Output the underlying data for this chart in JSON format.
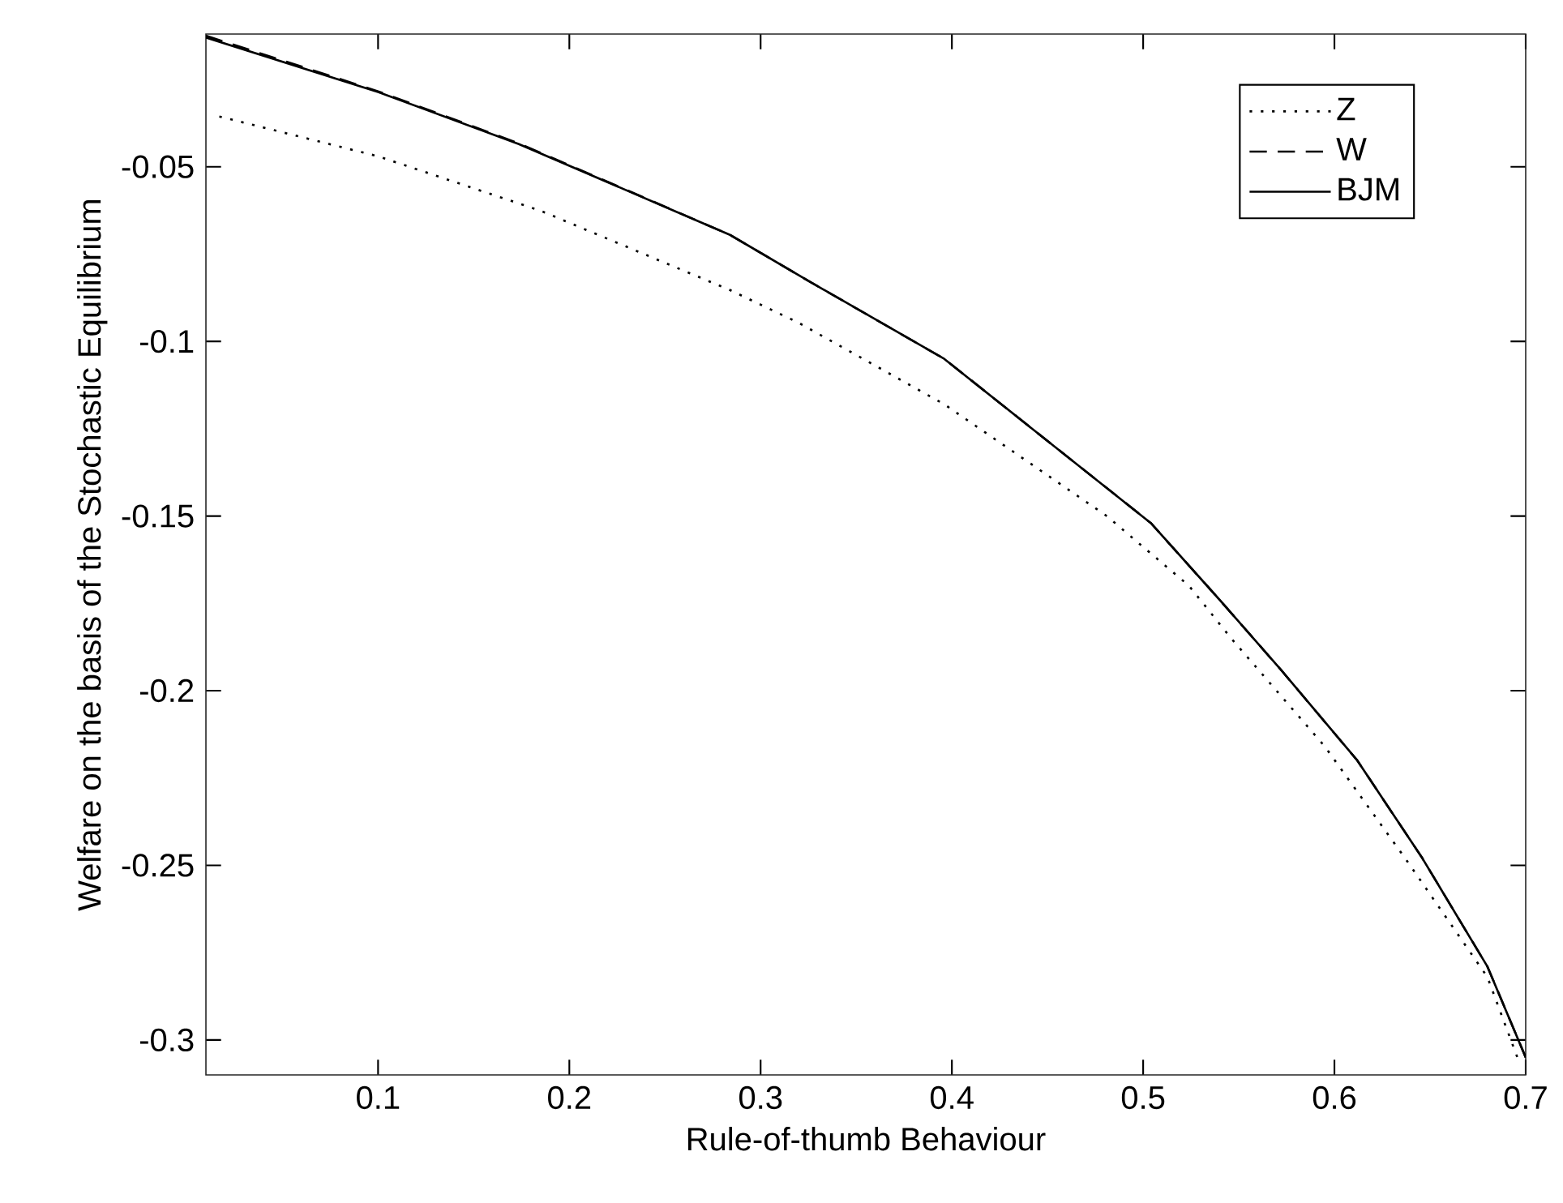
{
  "chart_data": {
    "type": "line",
    "xlabel": "Rule-of-thumb Behaviour",
    "ylabel": "Welfare on the basis of the Stochastic Equilibrium",
    "xlim": [
      0.01,
      0.7
    ],
    "ylim": [
      -0.31,
      -0.012
    ],
    "xticks": [
      0.1,
      0.2,
      0.3,
      0.4,
      0.5,
      0.6,
      0.7
    ],
    "yticks": [
      -0.3,
      -0.25,
      -0.2,
      -0.15,
      -0.1,
      -0.05
    ],
    "legend": "top right",
    "series": [
      {
        "name": "Z",
        "color": "#000000",
        "line_style": "dotted",
        "x": [
          0.017,
          0.1,
          0.185,
          0.284,
          0.32,
          0.396,
          0.481,
          0.524,
          0.546,
          0.595,
          0.637,
          0.68,
          0.697
        ],
        "values": [
          -0.0356,
          -0.047,
          -0.0626,
          -0.0853,
          -0.0947,
          -0.118,
          -0.15,
          -0.17,
          -0.185,
          -0.216,
          -0.248,
          -0.282,
          -0.307
        ]
      },
      {
        "name": "W",
        "color": "#000000",
        "line_style": "dashed",
        "x": [
          0.01,
          0.1,
          0.1736,
          0.284,
          0.326,
          0.396,
          0.504,
          0.54,
          0.572,
          0.612,
          0.646,
          0.68,
          0.7
        ],
        "values": [
          -0.0125,
          -0.0284,
          -0.0433,
          -0.0695,
          -0.083,
          -0.105,
          -0.152,
          -0.174,
          -0.194,
          -0.22,
          -0.248,
          -0.279,
          -0.305
        ]
      },
      {
        "name": "BJM",
        "color": "#000000",
        "line_style": "solid",
        "x": [
          0.01,
          0.1,
          0.1736,
          0.284,
          0.326,
          0.396,
          0.504,
          0.54,
          0.572,
          0.612,
          0.646,
          0.68,
          0.7
        ],
        "values": [
          -0.013,
          -0.0286,
          -0.0435,
          -0.0695,
          -0.083,
          -0.105,
          -0.152,
          -0.174,
          -0.194,
          -0.22,
          -0.248,
          -0.279,
          -0.305
        ]
      }
    ]
  }
}
